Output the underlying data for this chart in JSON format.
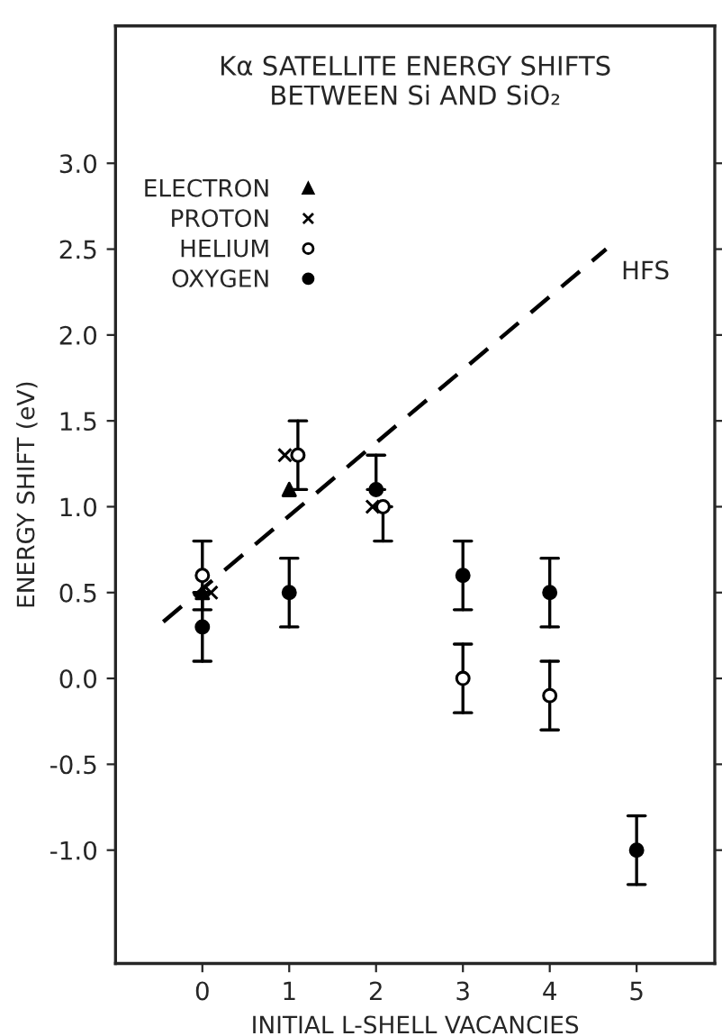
{
  "chart_data": {
    "type": "scatter",
    "title": "Kα SATELLITE ENERGY SHIFTS\nBETWEEN Si AND SiO₂",
    "xlabel": "INITIAL L-SHELL VACANCIES",
    "ylabel": "ENERGY SHIFT (eV)",
    "xlim": [
      -1.0,
      5.9
    ],
    "ylim": [
      -1.66,
      3.8
    ],
    "xticks": [
      0,
      1,
      2,
      3,
      4,
      5
    ],
    "yticks": [
      {
        "value": -1.0,
        "label": "-1.0"
      },
      {
        "value": -0.5,
        "label": "-0.5"
      },
      {
        "value": 0,
        "label": "0.0"
      },
      {
        "value": 0.5,
        "label": "0.5"
      },
      {
        "value": 1.0,
        "label": "1.0"
      },
      {
        "value": 1.5,
        "label": "1.5"
      },
      {
        "value": 2.0,
        "label": "2.0"
      },
      {
        "value": 2.5,
        "label": "2.5"
      },
      {
        "value": 3.0,
        "label": "3.0"
      }
    ],
    "grid": false,
    "legend": "top left",
    "series": [
      {
        "name": "ELECTRON",
        "color": "#000000",
        "marker": "triangle",
        "x": [
          0,
          1.0
        ],
        "values": [
          0.5,
          1.1
        ]
      },
      {
        "name": "PROTON",
        "color": "#000000",
        "marker": "cross",
        "x": [
          0.1,
          0.95,
          1.96
        ],
        "values": [
          0.5,
          1.3,
          1.0
        ]
      },
      {
        "name": "HELIUM",
        "color": "#000000",
        "marker": "circle",
        "x": [
          0,
          1.1,
          2.08,
          3,
          4
        ],
        "values": [
          0.6,
          1.3,
          1.0,
          0.0,
          -0.1
        ],
        "errors": [
          [
            0.4,
            0.8
          ],
          [
            1.1,
            1.5
          ],
          [
            0.8,
            1.0
          ],
          0.2,
          0.2
        ]
      },
      {
        "name": "OXYGEN",
        "color": "#000000",
        "marker": "circle",
        "x": [
          0,
          1,
          2,
          3,
          4,
          5
        ],
        "values": [
          0.3,
          0.5,
          1.1,
          0.6,
          0.5,
          -1.0
        ],
        "errors": [
          [
            0.1,
            0.5
          ],
          0.2,
          [
            1.1,
            1.3
          ],
          0.2,
          0.2,
          0.2
        ]
      },
      {
        "type": "line",
        "line_style": "dashed",
        "color": "#000000",
        "x": [
          -0.45,
          4.65
        ],
        "values": [
          0.33,
          2.5
        ]
      }
    ],
    "annotations": [
      {
        "text": "HFS",
        "x": 4.65,
        "y": 2.5
      }
    ]
  }
}
